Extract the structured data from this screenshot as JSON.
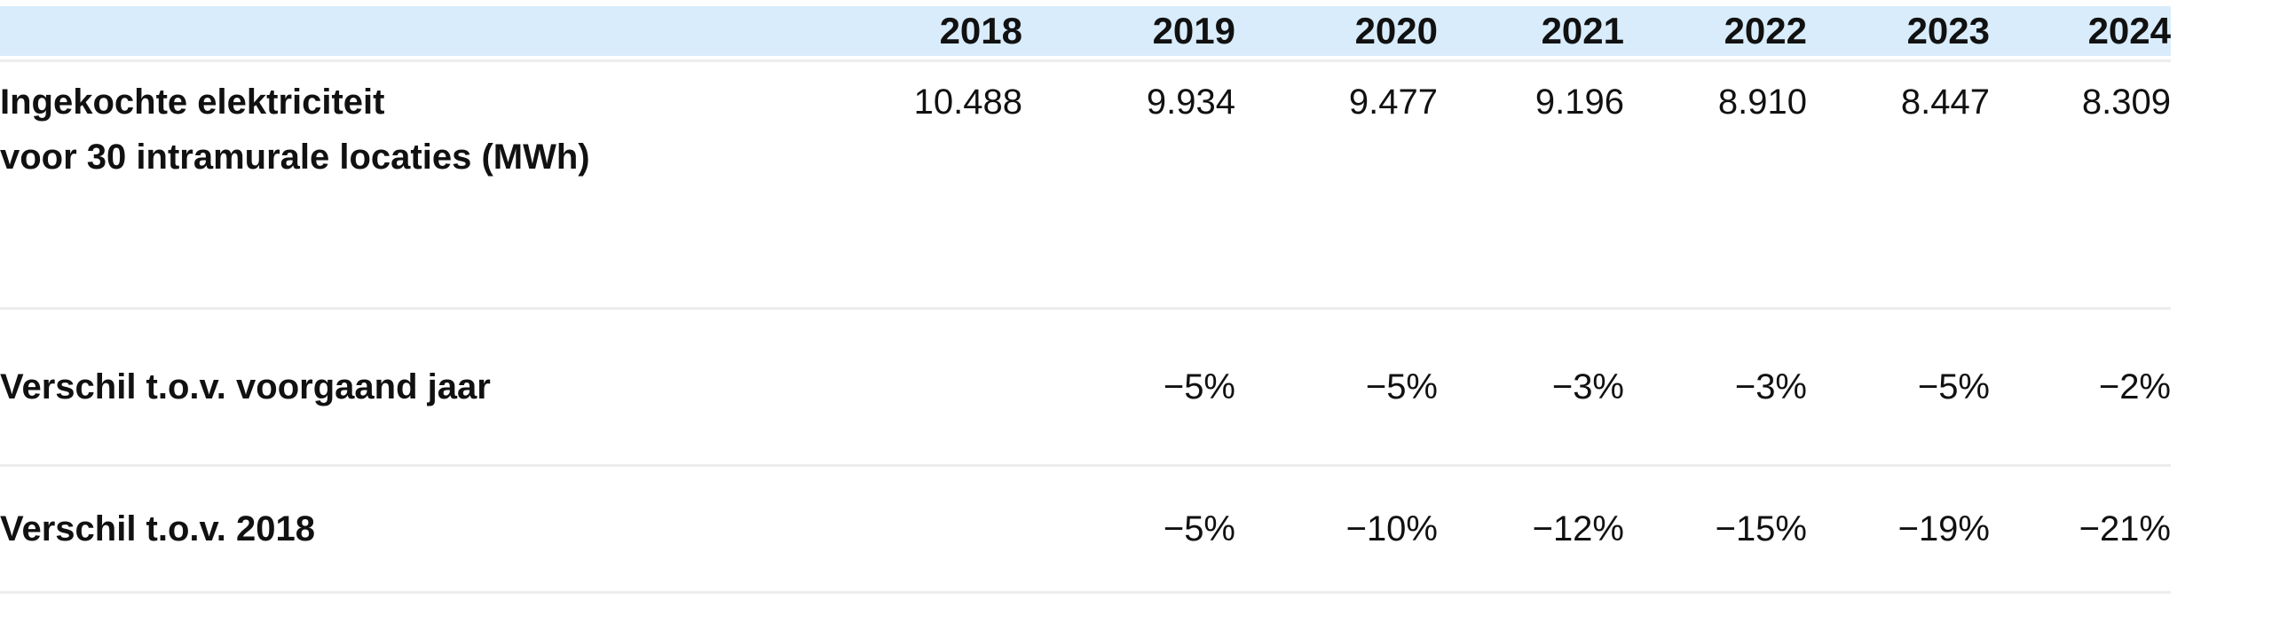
{
  "table": {
    "label_header": "",
    "years": [
      "2018",
      "2019",
      "2020",
      "2021",
      "2022",
      "2023",
      "2024"
    ],
    "rows": [
      {
        "label_line1": "Ingekochte elektriciteit",
        "label_line2": "voor 30 intramurale locaties (MWh)",
        "values": [
          "10.488",
          "9.934",
          "9.477",
          "9.196",
          "8.910",
          "8.447",
          "8.309"
        ]
      },
      {
        "label": "Verschil t.o.v. voorgaand jaar",
        "values": [
          "",
          "−5%",
          "−5%",
          "−3%",
          "−3%",
          "−5%",
          "−2%"
        ]
      },
      {
        "label": "Verschil t.o.v. 2018",
        "values": [
          "",
          "−5%",
          "−10%",
          "−12%",
          "−15%",
          "−19%",
          "−21%"
        ]
      }
    ]
  },
  "colors": {
    "header_background": "#d9ecfb",
    "row_divider": "#ededed",
    "text": "#111111"
  }
}
